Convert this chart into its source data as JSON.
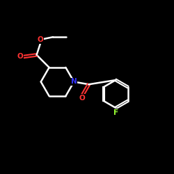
{
  "background_color": "#000000",
  "bond_color": "#ffffff",
  "atom_colors": {
    "O": "#ff3333",
    "N": "#3333ff",
    "F": "#99ff33",
    "C": "#ffffff"
  },
  "figsize": [
    2.5,
    2.5
  ],
  "dpi": 100
}
